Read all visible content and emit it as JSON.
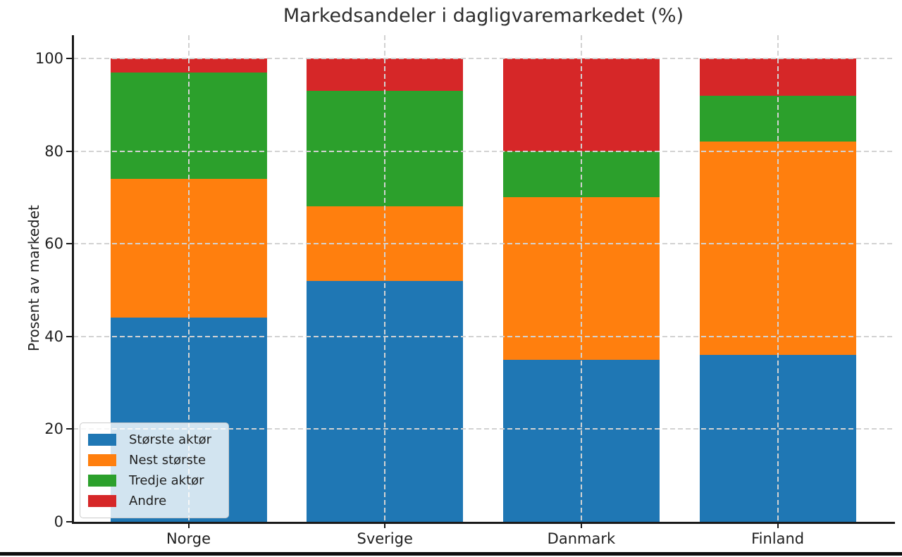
{
  "chart_data": {
    "type": "bar",
    "stacked": true,
    "title": "Markedsandeler i dagligvaremarkedet (%)",
    "xlabel": "",
    "ylabel": "Prosent av markedet",
    "categories": [
      "Norge",
      "Sverige",
      "Danmark",
      "Finland"
    ],
    "series": [
      {
        "name": "Største aktør",
        "color": "#1f77b4",
        "values": [
          44,
          52,
          35,
          36
        ]
      },
      {
        "name": "Nest største",
        "color": "#ff7f0e",
        "values": [
          30,
          16,
          35,
          46
        ]
      },
      {
        "name": "Tredje aktør",
        "color": "#2ca02c",
        "values": [
          23,
          25,
          10,
          10
        ]
      },
      {
        "name": "Andre",
        "color": "#d62728",
        "values": [
          3,
          7,
          20,
          8
        ]
      }
    ],
    "stack_totals": [
      100,
      100,
      100,
      100
    ],
    "yticks": [
      0,
      20,
      40,
      60,
      80,
      100
    ],
    "ylim": [
      0,
      105
    ],
    "grid": "dashed",
    "legend_position": "lower left"
  }
}
